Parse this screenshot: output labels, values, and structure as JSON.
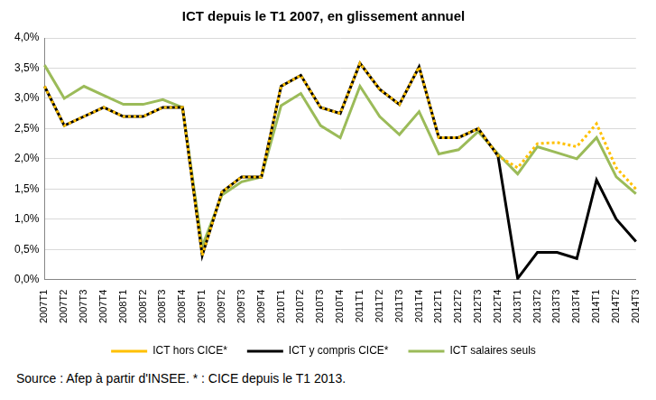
{
  "chart_data": {
    "type": "line",
    "title": "ICT depuis le T1 2007, en glissement annuel",
    "note": "Source : Afep à partir d'INSEE. * : CICE depuis le T1 2013.",
    "categories": [
      "2007T1",
      "2007T2",
      "2007T3",
      "2007T4",
      "2008T1",
      "2008T2",
      "2008T3",
      "2008T4",
      "2009T1",
      "2009T2",
      "2009T3",
      "2009T4",
      "2010T1",
      "2010T2",
      "2010T3",
      "2010T4",
      "2011T1",
      "2011T2",
      "2011T3",
      "2011T4",
      "2012T1",
      "2012T2",
      "2012T3",
      "2012T4",
      "2013T1",
      "2013T2",
      "2013T3",
      "2013T4",
      "2014T1",
      "2014T2",
      "2014T3"
    ],
    "series": [
      {
        "name": "ICT y compris CICE*",
        "color": "#000000",
        "line_style": "solid",
        "values": [
          3.2,
          2.55,
          2.7,
          2.85,
          2.7,
          2.7,
          2.85,
          2.85,
          0.4,
          1.45,
          1.7,
          1.7,
          3.2,
          3.38,
          2.85,
          2.75,
          3.58,
          3.15,
          2.9,
          3.52,
          2.35,
          2.35,
          2.5,
          2.05,
          0.02,
          0.45,
          0.45,
          0.35,
          1.65,
          1.0,
          0.63
        ]
      },
      {
        "name": "ICT hors CICE*",
        "color": "#ffc000",
        "line_style": "dotted",
        "values": [
          3.2,
          2.55,
          2.7,
          2.85,
          2.7,
          2.7,
          2.85,
          2.85,
          0.4,
          1.45,
          1.7,
          1.7,
          3.2,
          3.38,
          2.85,
          2.75,
          3.58,
          3.15,
          2.9,
          3.52,
          2.35,
          2.35,
          2.5,
          2.05,
          1.85,
          2.25,
          2.27,
          2.2,
          2.58,
          1.85,
          1.5
        ]
      },
      {
        "name": "ICT salaires seuls",
        "color": "#9bbb59",
        "line_style": "solid",
        "values": [
          3.55,
          3.0,
          3.2,
          3.05,
          2.9,
          2.9,
          2.98,
          2.85,
          0.55,
          1.4,
          1.62,
          1.7,
          2.88,
          3.08,
          2.55,
          2.35,
          3.2,
          2.7,
          2.4,
          2.78,
          2.08,
          2.15,
          2.45,
          2.08,
          1.75,
          2.2,
          2.1,
          2.0,
          2.35,
          1.7,
          1.42
        ]
      }
    ],
    "ylim": [
      0,
      4
    ],
    "yticks": [
      {
        "value": 0,
        "label": "0,0%"
      },
      {
        "value": 0.5,
        "label": "0,5%"
      },
      {
        "value": 1,
        "label": "1,0%"
      },
      {
        "value": 1.5,
        "label": "1,5%"
      },
      {
        "value": 2,
        "label": "2,0%"
      },
      {
        "value": 2.5,
        "label": "2,5%"
      },
      {
        "value": 3,
        "label": "3,0%"
      },
      {
        "value": 3.5,
        "label": "3,5%"
      },
      {
        "value": 4,
        "label": "4,0%"
      }
    ],
    "grid": true,
    "legend": "bottom"
  }
}
